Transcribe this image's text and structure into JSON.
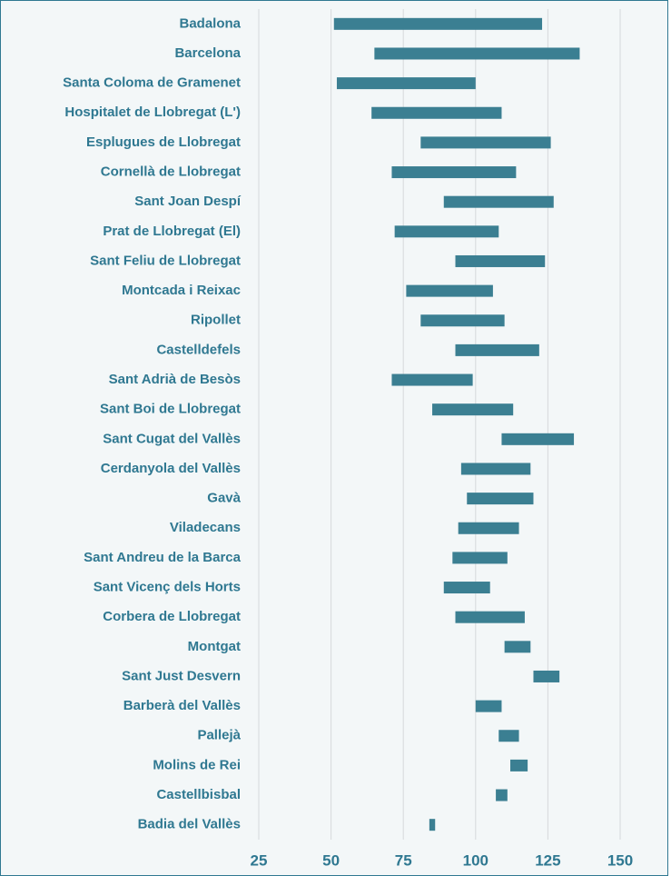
{
  "chart_data": {
    "type": "floating",
    "categories": [
      "Badalona",
      "Barcelona",
      "Santa Coloma de Gramenet",
      "Hospitalet de Llobregat (L')",
      "Esplugues de Llobregat",
      "Cornellà de Llobregat",
      "Sant Joan Despí",
      "Prat de Llobregat (El)",
      "Sant Feliu de Llobregat",
      "Montcada i Reixac",
      "Ripollet",
      "Castelldefels",
      "Sant Adrià de Besòs",
      "Sant Boi de Llobregat",
      "Sant Cugat del Vallès",
      "Cerdanyola del Vallès",
      "Gavà",
      "Viladecans",
      "Sant Andreu de la Barca",
      "Sant Vicenç dels Horts",
      "Corbera de Llobregat",
      "Montgat",
      "Sant Just Desvern",
      "Barberà del Vallès",
      "Pallejà",
      "Molins de Rei",
      "Castellbisbal",
      "Badia del Vallès"
    ],
    "low": [
      51,
      65,
      52,
      64,
      81,
      71,
      89,
      72,
      93,
      76,
      81,
      93,
      71,
      85,
      109,
      95,
      97,
      94,
      92,
      89,
      93,
      110,
      120,
      100,
      108,
      112,
      107,
      84
    ],
    "high": [
      123,
      136,
      100,
      109,
      126,
      114,
      127,
      108,
      124,
      106,
      110,
      122,
      99,
      113,
      134,
      119,
      120,
      115,
      111,
      105,
      117,
      119,
      129,
      109,
      115,
      118,
      111,
      86
    ],
    "color": "#3b7f92",
    "xlim": [
      25,
      150
    ],
    "xticks": [
      25,
      50,
      75,
      100,
      125,
      150
    ],
    "grid": true
  }
}
